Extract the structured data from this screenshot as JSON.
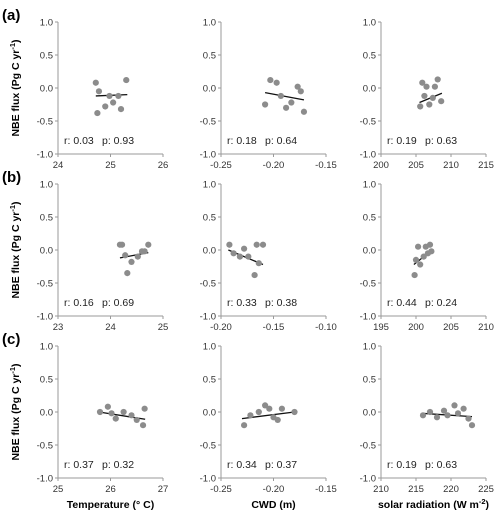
{
  "figure": {
    "ylabel": "NBE flux (Pg C yr",
    "ylabel_sup": "-1",
    "ylabel_close": ")"
  },
  "chart_data": [
    {
      "type": "scatter",
      "panel_label": "(a)",
      "ylim": [
        -1.0,
        1.0
      ],
      "yticks": [
        "1.0",
        "0.5",
        "0.0",
        "-0.5",
        "-1.0"
      ],
      "xlim": [
        24,
        26
      ],
      "xticks": [
        "24",
        "25",
        "26"
      ],
      "xticks_v": [
        24,
        25,
        26
      ],
      "xlabel": "",
      "stats": {
        "r": "r: 0.03",
        "p": "p: 0.93"
      },
      "points": [
        [
          24.72,
          0.08
        ],
        [
          24.78,
          -0.05
        ],
        [
          24.75,
          -0.38
        ],
        [
          24.98,
          -0.12
        ],
        [
          24.9,
          -0.28
        ],
        [
          25.05,
          -0.22
        ],
        [
          25.15,
          -0.12
        ],
        [
          25.2,
          -0.32
        ],
        [
          25.3,
          0.12
        ]
      ],
      "trend": [
        [
          24.72,
          -0.12
        ],
        [
          25.32,
          -0.1
        ]
      ]
    },
    {
      "type": "scatter",
      "panel_label": "",
      "ylim": [
        -1.0,
        1.0
      ],
      "yticks": [
        "1.0",
        "0.5",
        "0.0",
        "-0.5",
        "-1.0"
      ],
      "xlim": [
        -0.25,
        -0.15
      ],
      "xticks": [
        "-0.25",
        "-0.20",
        "-0.15"
      ],
      "xticks_v": [
        -0.25,
        -0.2,
        -0.15
      ],
      "xlabel": "",
      "stats": {
        "r": "r: 0.18",
        "p": "p: 0.64"
      },
      "points": [
        [
          -0.208,
          -0.25
        ],
        [
          -0.203,
          0.12
        ],
        [
          -0.197,
          0.08
        ],
        [
          -0.193,
          -0.12
        ],
        [
          -0.188,
          -0.3
        ],
        [
          -0.183,
          -0.22
        ],
        [
          -0.177,
          0.02
        ],
        [
          -0.174,
          -0.05
        ],
        [
          -0.171,
          -0.36
        ]
      ],
      "trend": [
        [
          -0.208,
          -0.07
        ],
        [
          -0.171,
          -0.18
        ]
      ]
    },
    {
      "type": "scatter",
      "panel_label": "",
      "ylim": [
        -1.0,
        1.0
      ],
      "yticks": [
        "1.0",
        "0.5",
        "0.0",
        "-0.5",
        "-1.0"
      ],
      "xlim": [
        200,
        215
      ],
      "xticks": [
        "200",
        "205",
        "210",
        "215"
      ],
      "xticks_v": [
        200,
        205,
        210,
        215
      ],
      "xlabel": "",
      "stats": {
        "r": "r: 0.19",
        "p": "p: 0.63"
      },
      "points": [
        [
          205.6,
          -0.28
        ],
        [
          205.9,
          0.08
        ],
        [
          206.2,
          -0.12
        ],
        [
          206.5,
          0.02
        ],
        [
          206.9,
          -0.25
        ],
        [
          207.4,
          -0.15
        ],
        [
          207.7,
          0.02
        ],
        [
          208.1,
          0.13
        ],
        [
          208.6,
          -0.2
        ]
      ],
      "trend": [
        [
          205.5,
          -0.22
        ],
        [
          208.7,
          -0.08
        ]
      ]
    },
    {
      "type": "scatter",
      "panel_label": "(b)",
      "ylim": [
        -1.0,
        1.0
      ],
      "yticks": [
        "1.0",
        "0.5",
        "0.0",
        "-0.5",
        "-1.0"
      ],
      "xlim": [
        23,
        25
      ],
      "xticks": [
        "23",
        "24",
        "25"
      ],
      "xticks_v": [
        23,
        24,
        25
      ],
      "xlabel": "",
      "stats": {
        "r": "r: 0.16",
        "p": "p: 0.69"
      },
      "points": [
        [
          24.18,
          0.08
        ],
        [
          24.22,
          0.08
        ],
        [
          24.28,
          -0.08
        ],
        [
          24.32,
          -0.35
        ],
        [
          24.4,
          -0.18
        ],
        [
          24.52,
          -0.1
        ],
        [
          24.6,
          -0.02
        ],
        [
          24.65,
          -0.02
        ],
        [
          24.72,
          0.08
        ]
      ],
      "trend": [
        [
          24.18,
          -0.12
        ],
        [
          24.72,
          -0.04
        ]
      ]
    },
    {
      "type": "scatter",
      "panel_label": "",
      "ylim": [
        -1.0,
        1.0
      ],
      "yticks": [
        "1.0",
        "0.5",
        "0.0",
        "-0.5",
        "-1.0"
      ],
      "xlim": [
        -0.2,
        -0.1
      ],
      "xticks": [
        "-0.20",
        "-0.15",
        "-0.10"
      ],
      "xticks_v": [
        -0.2,
        -0.15,
        -0.1
      ],
      "xlabel": "",
      "stats": {
        "r": "r: 0.33",
        "p": "p: 0.38"
      },
      "points": [
        [
          -0.192,
          0.08
        ],
        [
          -0.188,
          -0.05
        ],
        [
          -0.182,
          -0.1
        ],
        [
          -0.178,
          0.02
        ],
        [
          -0.174,
          -0.1
        ],
        [
          -0.168,
          -0.38
        ],
        [
          -0.166,
          0.08
        ],
        [
          -0.164,
          -0.2
        ],
        [
          -0.16,
          0.08
        ]
      ],
      "trend": [
        [
          -0.193,
          0.0
        ],
        [
          -0.16,
          -0.22
        ]
      ]
    },
    {
      "type": "scatter",
      "panel_label": "",
      "ylim": [
        -1.0,
        1.0
      ],
      "yticks": [
        "1.0",
        "0.5",
        "0.0",
        "-0.5",
        "-1.0"
      ],
      "xlim": [
        195,
        210
      ],
      "xticks": [
        "195",
        "200",
        "205",
        "210"
      ],
      "xticks_v": [
        195,
        200,
        205,
        210
      ],
      "xlabel": "",
      "stats": {
        "r": "r: 0.44",
        "p": "p: 0.24"
      },
      "points": [
        [
          199.8,
          -0.38
        ],
        [
          200.0,
          -0.15
        ],
        [
          200.3,
          0.05
        ],
        [
          200.6,
          -0.22
        ],
        [
          201.1,
          -0.1
        ],
        [
          201.4,
          0.05
        ],
        [
          201.7,
          -0.05
        ],
        [
          202.0,
          0.08
        ],
        [
          202.2,
          -0.02
        ]
      ],
      "trend": [
        [
          199.7,
          -0.22
        ],
        [
          202.3,
          0.0
        ]
      ]
    },
    {
      "type": "scatter",
      "panel_label": "(c)",
      "ylim": [
        -1.0,
        1.0
      ],
      "yticks": [
        "1.0",
        "0.5",
        "0.0",
        "-0.5",
        "-1.0"
      ],
      "xlim": [
        25,
        27
      ],
      "xticks": [
        "25",
        "26",
        "27"
      ],
      "xticks_v": [
        25,
        26,
        27
      ],
      "xlabel": "Temperature (° C)",
      "stats": {
        "r": "r: 0.37",
        "p": "p: 0.32"
      },
      "points": [
        [
          25.8,
          0.0
        ],
        [
          25.95,
          0.08
        ],
        [
          26.02,
          -0.02
        ],
        [
          26.1,
          -0.1
        ],
        [
          26.25,
          0.0
        ],
        [
          26.4,
          -0.05
        ],
        [
          26.5,
          -0.12
        ],
        [
          26.62,
          -0.2
        ],
        [
          26.65,
          0.05
        ]
      ],
      "trend": [
        [
          25.78,
          0.0
        ],
        [
          26.66,
          -0.11
        ]
      ]
    },
    {
      "type": "scatter",
      "panel_label": "",
      "ylim": [
        -1.0,
        1.0
      ],
      "yticks": [
        "1.0",
        "0.5",
        "0.0",
        "-0.5",
        "-1.0"
      ],
      "xlim": [
        -0.25,
        -0.15
      ],
      "xticks": [
        "-0.25",
        "-0.20",
        "-0.15"
      ],
      "xticks_v": [
        -0.25,
        -0.2,
        -0.15
      ],
      "xlabel": "CWD (m)",
      "stats": {
        "r": "r: 0.34",
        "p": "p: 0.37"
      },
      "points": [
        [
          -0.228,
          -0.2
        ],
        [
          -0.222,
          -0.05
        ],
        [
          -0.214,
          0.0
        ],
        [
          -0.208,
          0.1
        ],
        [
          -0.204,
          0.05
        ],
        [
          -0.2,
          -0.08
        ],
        [
          -0.196,
          -0.12
        ],
        [
          -0.192,
          0.05
        ],
        [
          -0.18,
          0.0
        ]
      ],
      "trend": [
        [
          -0.23,
          -0.1
        ],
        [
          -0.18,
          0.0
        ]
      ]
    },
    {
      "type": "scatter",
      "panel_label": "",
      "ylim": [
        -1.0,
        1.0
      ],
      "yticks": [
        "1.0",
        "0.5",
        "0.0",
        "-0.5",
        "-1.0"
      ],
      "xlim": [
        210,
        225
      ],
      "xticks": [
        "210",
        "215",
        "220",
        "225"
      ],
      "xticks_v": [
        210,
        215,
        220,
        225
      ],
      "xlabel": "solar radiation (W m",
      "xlabel_sup": "-2",
      "xlabel_close": ")",
      "stats": {
        "r": "r: 0.19",
        "p": "p: 0.63"
      },
      "points": [
        [
          216.0,
          -0.05
        ],
        [
          217.0,
          0.0
        ],
        [
          218.0,
          -0.08
        ],
        [
          219.0,
          0.02
        ],
        [
          219.5,
          -0.05
        ],
        [
          220.5,
          0.1
        ],
        [
          221.0,
          -0.02
        ],
        [
          221.8,
          0.05
        ],
        [
          222.5,
          -0.1
        ],
        [
          223.0,
          -0.2
        ]
      ],
      "trend": [
        [
          215.8,
          -0.02
        ],
        [
          223.0,
          -0.07
        ]
      ]
    }
  ]
}
